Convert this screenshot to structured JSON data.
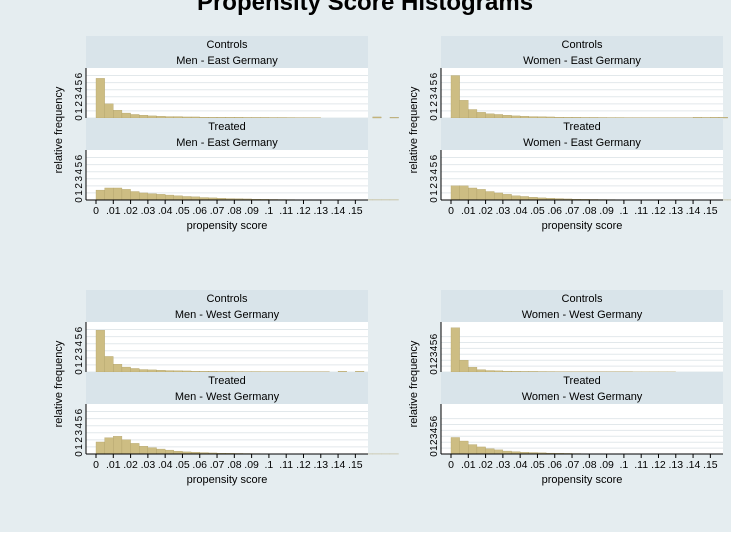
{
  "title": "Propensity Score Histograms",
  "colors": {
    "background": "#e5edf0",
    "plot": "#ffffff",
    "strip": "#d9e4ea",
    "bar": "#cdbd83",
    "bar_edge": "#a8995f",
    "grid": "#e2e8eb"
  },
  "chart_data": [
    {
      "type": "bar",
      "panel": "Men - East Germany",
      "xlabel": "propensity score",
      "ylabel": "relative frequency",
      "x_ticks": [
        "0",
        ".01",
        ".02",
        ".03",
        ".04",
        ".05",
        ".06",
        ".07",
        ".08",
        ".09",
        ".1",
        ".11",
        ".12",
        ".13",
        ".14",
        ".15"
      ],
      "y_ticks": [
        "0",
        "1",
        "2",
        "3",
        "4",
        "5",
        "6"
      ],
      "xlim": [
        0,
        0.155
      ],
      "ylim": [
        0,
        6.5
      ],
      "bin_width": 0.005,
      "series": [
        {
          "name": "Controls",
          "values": [
            5.6,
            2.0,
            1.1,
            0.7,
            0.5,
            0.4,
            0.3,
            0.25,
            0.2,
            0.2,
            0.15,
            0.15,
            0.12,
            0.1,
            0.1,
            0.1,
            0.1,
            0.08,
            0.08,
            0.08,
            0.07,
            0.07,
            0.06,
            0.05,
            0.05,
            0.04,
            0,
            0,
            0,
            0,
            0,
            0,
            0.15,
            0,
            0.1
          ]
        },
        {
          "name": "Treated",
          "values": [
            1.4,
            1.7,
            1.7,
            1.5,
            1.2,
            1.0,
            0.9,
            0.8,
            0.7,
            0.6,
            0.5,
            0.45,
            0.35,
            0.3,
            0.25,
            0.2,
            0.18,
            0.15,
            0.12,
            0.1,
            0.08,
            0.07,
            0.06,
            0.05,
            0.05,
            0.04,
            0.04,
            0.03,
            0.03,
            0.03,
            0.02,
            0.02,
            0.02,
            0.02,
            0.02
          ]
        }
      ]
    },
    {
      "type": "bar",
      "panel": "Women - East Germany",
      "xlabel": "propensity score",
      "ylabel": "relative frequency",
      "x_ticks": [
        "0",
        ".01",
        ".02",
        ".03",
        ".04",
        ".05",
        ".06",
        ".07",
        ".08",
        ".09",
        ".1",
        ".11",
        ".12",
        ".13",
        ".14",
        ".15"
      ],
      "y_ticks": [
        "0",
        "1",
        "2",
        "3",
        "4",
        "5",
        "6"
      ],
      "xlim": [
        0,
        0.155
      ],
      "ylim": [
        0,
        6.5
      ],
      "bin_width": 0.005,
      "series": [
        {
          "name": "Controls",
          "values": [
            6.0,
            2.5,
            1.2,
            0.8,
            0.6,
            0.5,
            0.4,
            0.3,
            0.25,
            0.2,
            0.18,
            0.15,
            0.12,
            0.1,
            0.1,
            0.08,
            0.08,
            0.07,
            0.06,
            0.06,
            0.05,
            0.05,
            0.05,
            0.04,
            0.04,
            0.04,
            0.03,
            0.03,
            0.1,
            0.08,
            0.1,
            0.1,
            0,
            0.1,
            0
          ]
        },
        {
          "name": "Treated",
          "values": [
            2.0,
            2.0,
            1.7,
            1.5,
            1.2,
            1.0,
            0.8,
            0.6,
            0.5,
            0.4,
            0.3,
            0.25,
            0.2,
            0.15,
            0.12,
            0.1,
            0.08,
            0.07,
            0.06,
            0.05,
            0.04,
            0.04,
            0.03,
            0.03,
            0.03,
            0.02,
            0.02,
            0.02,
            0.02,
            0.02,
            0.01,
            0.01,
            0.01,
            0.01,
            0.01
          ]
        }
      ]
    },
    {
      "type": "bar",
      "panel": "Men - West Germany",
      "xlabel": "propensity score",
      "ylabel": "relative frequency",
      "x_ticks": [
        "0",
        ".01",
        ".02",
        ".03",
        ".04",
        ".05",
        ".06",
        ".07",
        ".08",
        ".09",
        ".1",
        ".11",
        ".12",
        ".13",
        ".14",
        ".15"
      ],
      "y_ticks": [
        "0",
        "1",
        "2",
        "3",
        "4",
        "5",
        "6"
      ],
      "xlim": [
        0,
        0.155
      ],
      "ylim": [
        0,
        6.5
      ],
      "bin_width": 0.005,
      "series": [
        {
          "name": "Controls",
          "values": [
            5.9,
            2.2,
            1.1,
            0.7,
            0.5,
            0.35,
            0.3,
            0.25,
            0.2,
            0.18,
            0.15,
            0.12,
            0.1,
            0.1,
            0.08,
            0.08,
            0.07,
            0.06,
            0.06,
            0.05,
            0.05,
            0.04,
            0.04,
            0.04,
            0.03,
            0.03,
            0.03,
            0,
            0.1,
            0,
            0.1,
            0,
            0,
            0,
            0
          ]
        },
        {
          "name": "Treated",
          "values": [
            1.7,
            2.3,
            2.5,
            2.0,
            1.5,
            1.1,
            0.9,
            0.7,
            0.55,
            0.4,
            0.3,
            0.25,
            0.2,
            0.15,
            0.12,
            0.1,
            0.08,
            0.07,
            0.06,
            0.05,
            0.04,
            0.03,
            0.03,
            0.02,
            0.02,
            0.02,
            0.02,
            0.01,
            0.01,
            0.01,
            0.01,
            0.01,
            0.01,
            0.01,
            0.01
          ]
        }
      ]
    },
    {
      "type": "bar",
      "panel": "Women - West Germany",
      "xlabel": "propensity score",
      "ylabel": "relative frequency",
      "x_ticks": [
        "0",
        ".01",
        ".02",
        ".03",
        ".04",
        ".05",
        ".06",
        ".07",
        ".08",
        ".09",
        ".1",
        ".11",
        ".12",
        ".13",
        ".14",
        ".15"
      ],
      "y_ticks": [
        "0",
        "1",
        "2",
        "3",
        "4",
        "5",
        "6"
      ],
      "xlim": [
        0,
        0.155
      ],
      "ylim": [
        0,
        7.8
      ],
      "bin_width": 0.005,
      "series": [
        {
          "name": "Controls",
          "values": [
            7.5,
            2.0,
            0.8,
            0.4,
            0.25,
            0.2,
            0.15,
            0.12,
            0.1,
            0.1,
            0.08,
            0.07,
            0.06,
            0.06,
            0.05,
            0.05,
            0.04,
            0.04,
            0.03,
            0.03,
            0.03,
            0.02,
            0.02,
            0.02,
            0.02,
            0.02,
            0,
            0,
            0,
            0,
            0,
            0,
            0,
            0,
            0
          ]
        },
        {
          "name": "Treated",
          "values": [
            2.8,
            2.2,
            1.6,
            1.2,
            0.9,
            0.7,
            0.5,
            0.4,
            0.3,
            0.25,
            0.2,
            0.15,
            0.12,
            0.1,
            0.08,
            0.06,
            0.05,
            0.04,
            0.03,
            0.03,
            0.02,
            0.02,
            0.02,
            0.01,
            0.01,
            0.01,
            0.01,
            0.01,
            0.01,
            0.01,
            0,
            0,
            0,
            0,
            0
          ]
        }
      ]
    }
  ]
}
